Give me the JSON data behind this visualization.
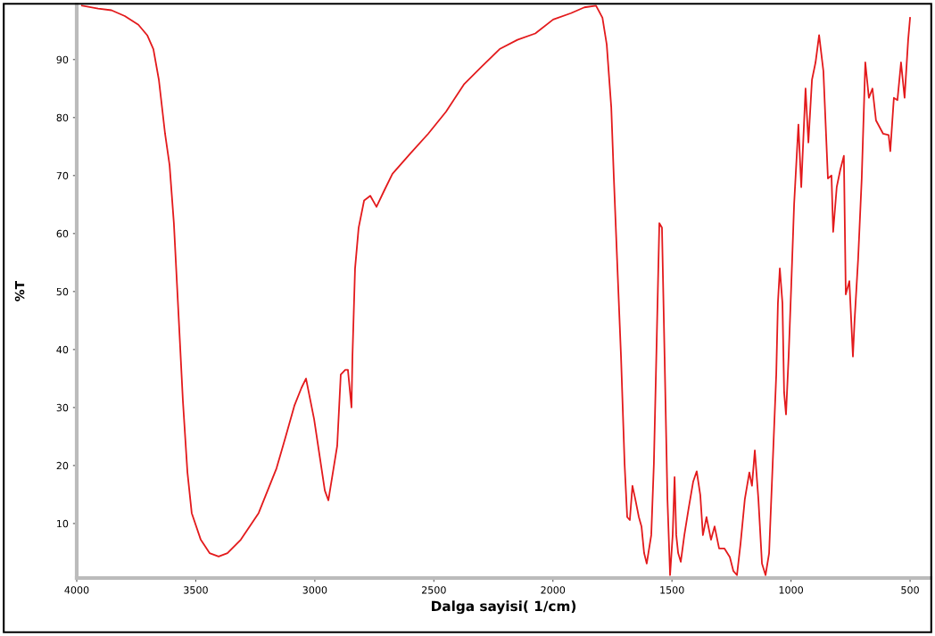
{
  "chart_data": {
    "type": "line",
    "xlabel": "Dalga sayisi( 1/cm)",
    "ylabel": "%T",
    "xlim": [
      4000,
      414
    ],
    "ylim": [
      0.6,
      99.5
    ],
    "xticks": [
      4000,
      3500,
      3000,
      2500,
      2000,
      1500,
      1000,
      500
    ],
    "yticks": [
      10,
      20,
      30,
      40,
      50,
      60,
      70,
      80,
      90
    ],
    "grid": false,
    "legend": false,
    "marker": "none",
    "line_style": "solid",
    "series": [
      {
        "color": "#e31a1c",
        "x": [
          3978,
          3910,
          3854,
          3798,
          3741,
          3704,
          3678,
          3655,
          3629,
          3610,
          3592,
          3573,
          3554,
          3535,
          3517,
          3479,
          3442,
          3404,
          3367,
          3311,
          3236,
          3161,
          3123,
          3086,
          3056,
          3037,
          3003,
          2958,
          2943,
          2906,
          2891,
          2872,
          2861,
          2846,
          2842,
          2831,
          2816,
          2793,
          2767,
          2741,
          2711,
          2674,
          2599,
          2524,
          2449,
          2374,
          2299,
          2224,
          2149,
          2074,
          1999,
          1924,
          1868,
          1819,
          1792,
          1774,
          1755,
          1744,
          1729,
          1714,
          1699,
          1688,
          1677,
          1666,
          1654,
          1639,
          1628,
          1617,
          1606,
          1587,
          1576,
          1564,
          1553,
          1542,
          1531,
          1519,
          1508,
          1497,
          1489,
          1482,
          1474,
          1463,
          1448,
          1430,
          1411,
          1396,
          1381,
          1370,
          1355,
          1336,
          1321,
          1302,
          1280,
          1257,
          1242,
          1227,
          1212,
          1194,
          1175,
          1164,
          1152,
          1137,
          1122,
          1107,
          1092,
          1077,
          1062,
          1055,
          1047,
          1036,
          1029,
          1021,
          1010,
          999,
          987,
          969,
          957,
          939,
          927,
          912,
          897,
          882,
          864,
          845,
          830,
          823,
          808,
          793,
          778,
          770,
          755,
          740,
          733,
          718,
          703,
          688,
          673,
          658,
          643,
          613,
          590,
          583,
          568,
          553,
          538,
          523,
          508,
          500
        ],
        "values": [
          99.3,
          98.8,
          98.5,
          97.5,
          96.0,
          94.2,
          91.8,
          86.5,
          77.2,
          71.8,
          61.8,
          46.5,
          31.1,
          18.8,
          11.8,
          7.2,
          4.9,
          4.3,
          4.9,
          7.2,
          11.8,
          19.5,
          24.9,
          30.3,
          33.4,
          35.0,
          28.0,
          15.7,
          14.0,
          23.4,
          35.7,
          36.5,
          36.5,
          30.0,
          38.8,
          54.0,
          61.0,
          65.7,
          66.5,
          64.6,
          67.2,
          70.3,
          73.8,
          77.2,
          81.0,
          85.7,
          88.8,
          91.8,
          93.4,
          94.5,
          96.9,
          98.0,
          99.0,
          99.3,
          97.2,
          92.6,
          81.8,
          69.5,
          54.0,
          38.8,
          20.3,
          11.1,
          10.6,
          16.5,
          14.2,
          11.1,
          9.5,
          4.9,
          3.1,
          8.0,
          20.3,
          41.8,
          61.8,
          61.0,
          38.8,
          14.2,
          1.1,
          8.0,
          18.0,
          8.0,
          4.9,
          3.4,
          8.0,
          12.6,
          17.2,
          19.0,
          14.9,
          8.0,
          11.1,
          7.2,
          9.5,
          5.7,
          5.7,
          4.2,
          1.8,
          1.1,
          6.5,
          14.2,
          18.8,
          16.5,
          22.6,
          14.2,
          3.1,
          1.1,
          4.9,
          20.3,
          35.7,
          48.0,
          54.0,
          48.0,
          32.6,
          28.8,
          38.8,
          51.0,
          65.0,
          78.8,
          68.0,
          85.0,
          75.7,
          86.5,
          89.5,
          94.2,
          88.0,
          69.5,
          70.0,
          60.3,
          68.0,
          71.0,
          73.4,
          49.5,
          51.8,
          38.8,
          45.0,
          55.7,
          69.5,
          89.5,
          83.4,
          85.0,
          79.5,
          77.2,
          77.0,
          74.2,
          83.4,
          83.0,
          89.5,
          83.4,
          93.4,
          97.2
        ]
      }
    ]
  }
}
